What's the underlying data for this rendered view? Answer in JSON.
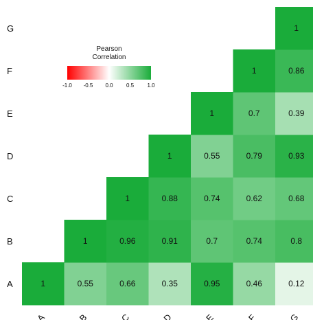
{
  "chart_data": {
    "type": "heatmap",
    "rows": [
      "G",
      "F",
      "E",
      "D",
      "C",
      "B",
      "A"
    ],
    "columns": [
      "A",
      "B",
      "C",
      "D",
      "E",
      "F",
      "G"
    ],
    "cells": [
      {
        "row": "A",
        "col": "A",
        "value": 1,
        "label": "1"
      },
      {
        "row": "A",
        "col": "B",
        "value": 0.55,
        "label": "0.55"
      },
      {
        "row": "A",
        "col": "C",
        "value": 0.66,
        "label": "0.66"
      },
      {
        "row": "A",
        "col": "D",
        "value": 0.35,
        "label": "0.35"
      },
      {
        "row": "A",
        "col": "E",
        "value": 0.95,
        "label": "0.95"
      },
      {
        "row": "A",
        "col": "F",
        "value": 0.46,
        "label": "0.46"
      },
      {
        "row": "A",
        "col": "G",
        "value": 0.12,
        "label": "0.12"
      },
      {
        "row": "B",
        "col": "B",
        "value": 1,
        "label": "1"
      },
      {
        "row": "B",
        "col": "C",
        "value": 0.96,
        "label": "0.96"
      },
      {
        "row": "B",
        "col": "D",
        "value": 0.91,
        "label": "0.91"
      },
      {
        "row": "B",
        "col": "E",
        "value": 0.7,
        "label": "0.7"
      },
      {
        "row": "B",
        "col": "F",
        "value": 0.74,
        "label": "0.74"
      },
      {
        "row": "B",
        "col": "G",
        "value": 0.8,
        "label": "0.8"
      },
      {
        "row": "C",
        "col": "C",
        "value": 1,
        "label": "1"
      },
      {
        "row": "C",
        "col": "D",
        "value": 0.88,
        "label": "0.88"
      },
      {
        "row": "C",
        "col": "E",
        "value": 0.74,
        "label": "0.74"
      },
      {
        "row": "C",
        "col": "F",
        "value": 0.62,
        "label": "0.62"
      },
      {
        "row": "C",
        "col": "G",
        "value": 0.68,
        "label": "0.68"
      },
      {
        "row": "D",
        "col": "D",
        "value": 1,
        "label": "1"
      },
      {
        "row": "D",
        "col": "E",
        "value": 0.55,
        "label": "0.55"
      },
      {
        "row": "D",
        "col": "F",
        "value": 0.79,
        "label": "0.79"
      },
      {
        "row": "D",
        "col": "G",
        "value": 0.93,
        "label": "0.93"
      },
      {
        "row": "E",
        "col": "E",
        "value": 1,
        "label": "1"
      },
      {
        "row": "E",
        "col": "F",
        "value": 0.7,
        "label": "0.7"
      },
      {
        "row": "E",
        "col": "G",
        "value": 0.39,
        "label": "0.39"
      },
      {
        "row": "F",
        "col": "F",
        "value": 1,
        "label": "1"
      },
      {
        "row": "F",
        "col": "G",
        "value": 0.86,
        "label": "0.86"
      },
      {
        "row": "G",
        "col": "G",
        "value": 1,
        "label": "1"
      }
    ],
    "legend": {
      "title": "Pearson Correlation",
      "title_lines": [
        "Pearson",
        "Correlation"
      ],
      "range": [
        -1.0,
        1.0
      ],
      "ticks": [
        "-1.0",
        "-0.5",
        "0.0",
        "0.5",
        "1.0"
      ],
      "colors": {
        "low": "#ff0000",
        "mid": "#ffffff",
        "high": "#1aac3a"
      },
      "placement": "top-left"
    }
  }
}
